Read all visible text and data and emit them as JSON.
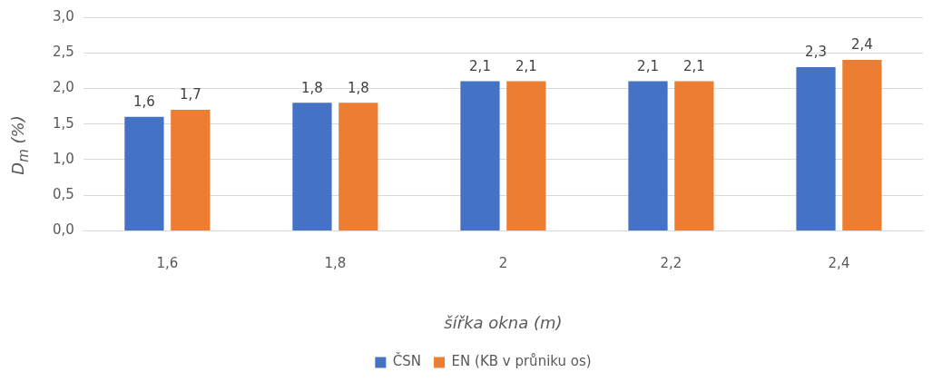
{
  "chart_data": {
    "type": "bar",
    "xlabel": "šířka okna (m)",
    "ylabel": "D$_{m}$ (%)",
    "categories": [
      "1,6",
      "1,8",
      "2",
      "2,2",
      "2,4"
    ],
    "series": [
      {
        "name": "ČSN",
        "color": "#4472c4",
        "values": [
          1.6,
          1.8,
          2.1,
          2.1,
          2.3
        ],
        "value_labels": [
          "1,6",
          "1,8",
          "2,1",
          "2,1",
          "2,3"
        ]
      },
      {
        "name": "EN (KB v průniku os)",
        "color": "#ed7d31",
        "values": [
          1.7,
          1.8,
          2.1,
          2.1,
          2.4
        ],
        "value_labels": [
          "1,7",
          "1,8",
          "2,1",
          "2,1",
          "2,4"
        ]
      }
    ],
    "ylim": [
      0,
      3
    ],
    "yticks": [
      {
        "value": 0,
        "label": "0,0"
      },
      {
        "value": 0.5,
        "label": "0,5"
      },
      {
        "value": 1,
        "label": "1,0"
      },
      {
        "value": 1.5,
        "label": "1,5"
      },
      {
        "value": 2,
        "label": "2,0"
      },
      {
        "value": 2.5,
        "label": "2,5"
      },
      {
        "value": 3,
        "label": "3,0"
      }
    ],
    "grid": "y",
    "legend": "bottom"
  }
}
